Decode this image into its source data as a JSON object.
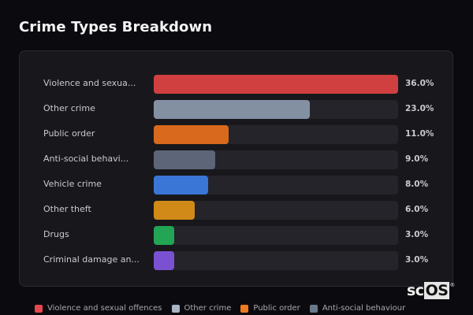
{
  "header": {
    "title": "Crime Types Breakdown"
  },
  "chart_data": {
    "type": "bar",
    "orientation": "horizontal",
    "title": "Crime Types Breakdown",
    "categories": [
      "Violence and sexual offences",
      "Other crime",
      "Public order",
      "Anti-social behaviour",
      "Vehicle crime",
      "Other theft",
      "Drugs",
      "Criminal damage and arson"
    ],
    "display_labels": [
      "Violence and sexua...",
      "Other crime",
      "Public order",
      "Anti-social behavi...",
      "Vehicle crime",
      "Other theft",
      "Drugs",
      "Criminal damage an..."
    ],
    "values": [
      36.0,
      23.0,
      11.0,
      9.0,
      8.0,
      6.0,
      3.0,
      3.0
    ],
    "value_labels": [
      "36.0%",
      "23.0%",
      "11.0%",
      "9.0%",
      "8.0%",
      "6.0%",
      "3.0%",
      "3.0%"
    ],
    "colors": [
      "#d04040",
      "#8390a2",
      "#d9691c",
      "#5c6678",
      "#3a76d6",
      "#d18a17",
      "#22a554",
      "#7a52d1"
    ],
    "xlim": [
      0,
      36
    ],
    "unit": "%",
    "legend_position": "bottom"
  },
  "rows": [
    {
      "label": "Violence and sexua...",
      "pct": "36.0%",
      "width": "100%",
      "color": "#d04040"
    },
    {
      "label": "Other crime",
      "pct": "23.0%",
      "width": "63.9%",
      "color": "#8390a2"
    },
    {
      "label": "Public order",
      "pct": "11.0%",
      "width": "30.6%",
      "color": "#d9691c"
    },
    {
      "label": "Anti-social behavi...",
      "pct": "9.0%",
      "width": "25%",
      "color": "#5c6678"
    },
    {
      "label": "Vehicle crime",
      "pct": "8.0%",
      "width": "22.2%",
      "color": "#3a76d6"
    },
    {
      "label": "Other theft",
      "pct": "6.0%",
      "width": "16.7%",
      "color": "#d18a17"
    },
    {
      "label": "Drugs",
      "pct": "3.0%",
      "width": "8.3%",
      "color": "#22a554"
    },
    {
      "label": "Criminal damage an...",
      "pct": "3.0%",
      "width": "8.3%",
      "color": "#7a52d1"
    }
  ],
  "legend": [
    {
      "label": "Violence and sexual offences",
      "color": "#e5484d"
    },
    {
      "label": "Other crime",
      "color": "#a9b4c4"
    },
    {
      "label": "Public order",
      "color": "#f07a1e"
    },
    {
      "label": "Anti-social behaviour",
      "color": "#6b778a"
    }
  ],
  "watermark": {
    "sc": "sc",
    "os": "OS",
    "mark": "®"
  }
}
